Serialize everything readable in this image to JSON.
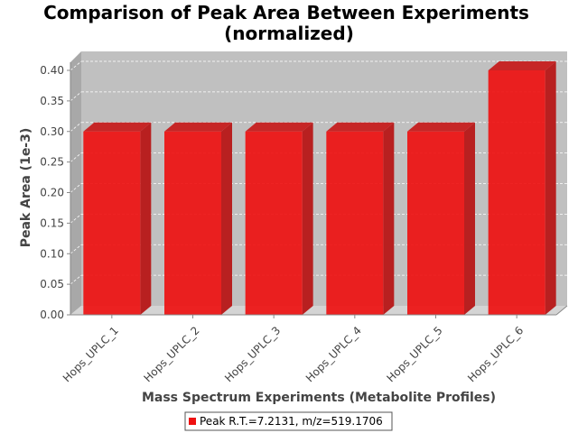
{
  "chart_data": {
    "type": "bar",
    "title": "Comparison of Peak Area Between Experiments",
    "subtitle": "(normalized)",
    "xlabel": "Mass Spectrum Experiments (Metabolite Profiles)",
    "ylabel": "Peak Area (1e-3)",
    "categories": [
      "Hops_UPLC_1",
      "Hops_UPLC_2",
      "Hops_UPLC_3",
      "Hops_UPLC_4",
      "Hops_UPLC_5",
      "Hops_UPLC_6"
    ],
    "series": [
      {
        "name": "Peak R.T.=7.2131, m/z=519.1706",
        "values": [
          0.3,
          0.3,
          0.3,
          0.3,
          0.3,
          0.4
        ],
        "color": "#ee1111"
      }
    ],
    "ylim": [
      0,
      0.4
    ],
    "yticks": [
      "0.00",
      "0.05",
      "0.10",
      "0.15",
      "0.20",
      "0.25",
      "0.30",
      "0.35",
      "0.40"
    ],
    "grid": true,
    "legend_position": "bottom",
    "plot_background": "#c0c0c0",
    "bar_3d": true
  }
}
